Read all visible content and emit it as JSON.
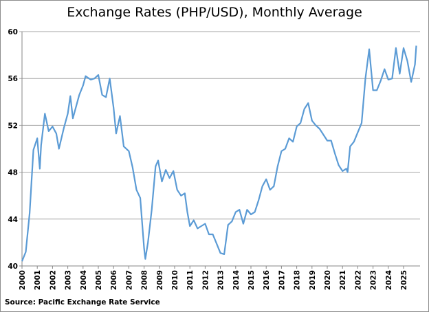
{
  "chart_data": {
    "type": "line",
    "title": "Exchange Rates (PHP/USD), Monthly Average",
    "source": "Source: Pacific Exchange Rate Service",
    "xlabel": "",
    "ylabel": "",
    "ylim": [
      40,
      60
    ],
    "yticks": [
      "40",
      "44",
      "48",
      "52",
      "56",
      "60"
    ],
    "xticks": [
      "2000",
      "2001",
      "2002",
      "2003",
      "2004",
      "2005",
      "2006",
      "2007",
      "2008",
      "2009",
      "2010",
      "2011",
      "2012",
      "2013",
      "2014",
      "2015",
      "2016",
      "2017",
      "2018",
      "2019",
      "2020",
      "2021",
      "2022",
      "2023",
      "2024",
      "2025"
    ],
    "grid": "horizontal",
    "legend": "none",
    "line_color": "#5b9bd5",
    "series": [
      {
        "x": [
          "2000-01",
          "2000-04",
          "2000-07",
          "2000-10",
          "2001-01",
          "2001-03",
          "2001-04",
          "2001-07",
          "2001-10",
          "2002-01",
          "2002-04",
          "2002-06",
          "2002-10",
          "2003-01",
          "2003-03",
          "2003-05",
          "2003-10",
          "2004-01",
          "2004-03",
          "2004-07",
          "2004-10",
          "2005-01",
          "2005-04",
          "2005-07",
          "2005-10",
          "2006-01",
          "2006-03",
          "2006-06",
          "2006-09",
          "2007-01",
          "2007-04",
          "2007-07",
          "2007-10",
          "2008-01",
          "2008-02",
          "2008-04",
          "2008-07",
          "2008-10",
          "2008-12",
          "2009-03",
          "2009-06",
          "2009-09",
          "2009-12",
          "2010-03",
          "2010-06",
          "2010-09",
          "2010-11",
          "2011-01",
          "2011-04",
          "2011-07",
          "2011-10",
          "2012-01",
          "2012-04",
          "2012-07",
          "2012-10",
          "2013-01",
          "2013-04",
          "2013-07",
          "2013-10",
          "2014-01",
          "2014-04",
          "2014-07",
          "2014-10",
          "2015-01",
          "2015-04",
          "2015-07",
          "2015-10",
          "2016-01",
          "2016-04",
          "2016-07",
          "2016-10",
          "2017-01",
          "2017-04",
          "2017-07",
          "2017-10",
          "2018-01",
          "2018-04",
          "2018-07",
          "2018-10",
          "2019-01",
          "2019-04",
          "2019-07",
          "2019-10",
          "2020-01",
          "2020-04",
          "2020-07",
          "2020-10",
          "2021-01",
          "2021-04",
          "2021-05",
          "2021-07",
          "2021-10",
          "2022-01",
          "2022-04",
          "2022-07",
          "2022-10",
          "2023-01",
          "2023-04",
          "2023-07",
          "2023-10",
          "2024-01",
          "2024-04",
          "2024-07",
          "2024-10",
          "2025-01",
          "2025-04",
          "2025-07",
          "2025-10",
          "2025-11"
        ],
        "y": [
          40.4,
          41.2,
          44.5,
          49.9,
          50.9,
          48.3,
          50.3,
          53.0,
          51.5,
          51.9,
          51.3,
          50.0,
          51.8,
          53.0,
          54.5,
          52.6,
          54.6,
          55.4,
          56.2,
          55.9,
          56.0,
          56.3,
          54.6,
          54.4,
          56.0,
          53.5,
          51.3,
          52.8,
          50.2,
          49.8,
          48.4,
          46.5,
          45.8,
          41.5,
          40.6,
          42.0,
          44.8,
          48.5,
          49.0,
          47.2,
          48.2,
          47.5,
          48.1,
          46.5,
          46.0,
          46.2,
          44.6,
          43.4,
          43.9,
          43.2,
          43.4,
          43.6,
          42.7,
          42.7,
          41.9,
          41.1,
          41.0,
          43.5,
          43.8,
          44.6,
          44.8,
          43.6,
          44.8,
          44.4,
          44.6,
          45.6,
          46.8,
          47.4,
          46.5,
          46.8,
          48.5,
          49.8,
          50.0,
          50.9,
          50.6,
          51.9,
          52.2,
          53.4,
          53.9,
          52.4,
          52.0,
          51.7,
          51.2,
          50.7,
          50.7,
          49.6,
          48.6,
          48.1,
          48.3,
          48.0,
          50.2,
          50.6,
          51.4,
          52.2,
          56.0,
          58.5,
          55.0,
          55.0,
          55.8,
          56.8,
          55.9,
          56.0,
          58.6,
          56.4,
          58.6,
          57.5,
          55.7,
          57.2,
          58.8
        ]
      }
    ]
  }
}
